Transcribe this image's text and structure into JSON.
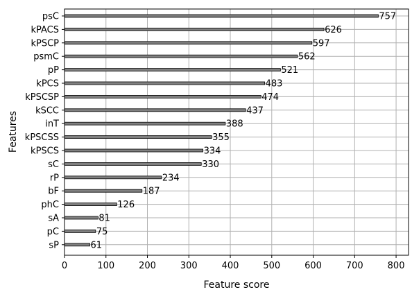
{
  "chart_data": {
    "type": "bar",
    "orientation": "horizontal",
    "categories": [
      "psC",
      "kPACS",
      "kPSCP",
      "psmC",
      "pP",
      "kPCS",
      "kPSCSP",
      "kSCC",
      "inT",
      "kPSCSS",
      "kPSCS",
      "sC",
      "rP",
      "bF",
      "phC",
      "sA",
      "pC",
      "sP"
    ],
    "values": [
      757,
      626,
      597,
      562,
      521,
      483,
      474,
      437,
      388,
      355,
      334,
      330,
      234,
      187,
      126,
      81,
      75,
      61
    ],
    "xlabel": "Feature score",
    "ylabel": "Features",
    "xlim": [
      0,
      830
    ],
    "xticks": [
      0,
      100,
      200,
      300,
      400,
      500,
      600,
      700,
      800
    ],
    "grid": true,
    "data_labels": true,
    "bar_color": "#808080",
    "bar_edge_color": "#000000",
    "grid_color": "#b0b0b0"
  }
}
